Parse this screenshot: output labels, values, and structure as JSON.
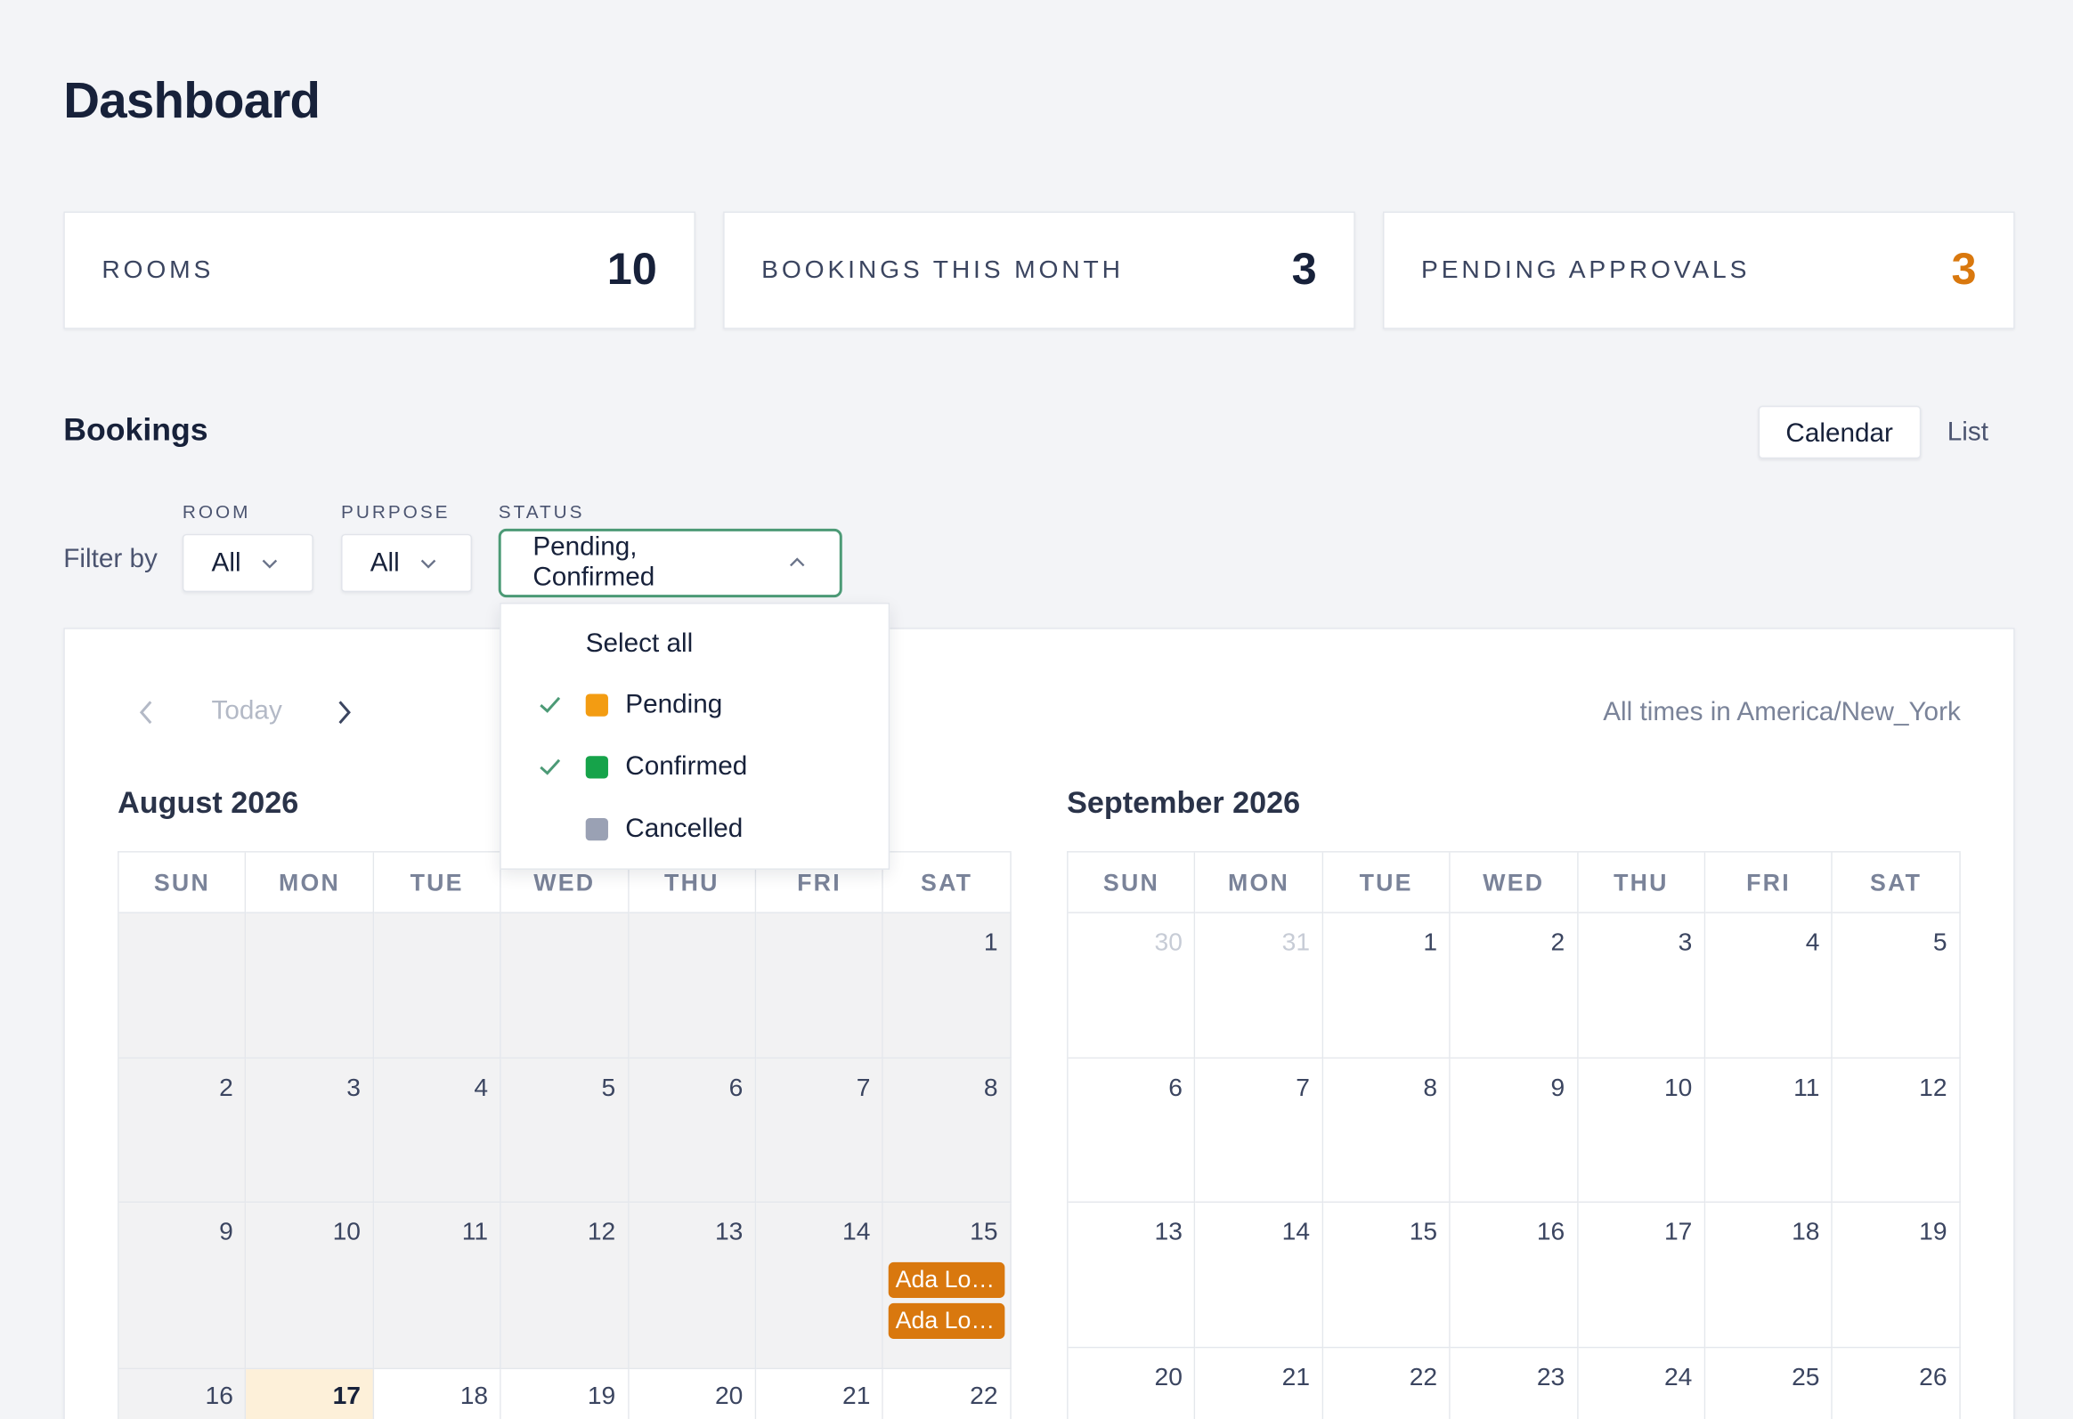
{
  "page": {
    "title": "Dashboard"
  },
  "stats": [
    {
      "label": "ROOMS",
      "value": "10"
    },
    {
      "label": "BOOKINGS THIS MONTH",
      "value": "3"
    },
    {
      "label": "PENDING APPROVALS",
      "value": "3",
      "color": "#d9780e"
    }
  ],
  "bookings": {
    "title": "Bookings",
    "views": {
      "calendar": "Calendar",
      "list": "List",
      "selected": "Calendar"
    }
  },
  "filters": {
    "label": "Filter by",
    "room": {
      "caption": "ROOM",
      "value": "All"
    },
    "purpose": {
      "caption": "PURPOSE",
      "value": "All"
    },
    "status": {
      "caption": "STATUS",
      "value": "Pending, Confirmed",
      "open": true,
      "select_all": "Select all",
      "options": [
        {
          "label": "Pending",
          "checked": true,
          "color": "#f39c12"
        },
        {
          "label": "Confirmed",
          "checked": true,
          "color": "#16a34a"
        },
        {
          "label": "Cancelled",
          "checked": false,
          "color": "#9aa1b4"
        }
      ]
    }
  },
  "calendar": {
    "today_label": "Today",
    "timezone_note": "All times in America/New_York",
    "weekdays": [
      "SUN",
      "MON",
      "TUE",
      "WED",
      "THU",
      "FRI",
      "SAT"
    ],
    "months": [
      {
        "title": "August 2026",
        "weeks": [
          [
            "",
            "",
            "",
            "",
            "",
            "",
            "1"
          ],
          [
            "2",
            "3",
            "4",
            "5",
            "6",
            "7",
            "8"
          ],
          [
            "9",
            "10",
            "11",
            "12",
            "13",
            "14",
            "15"
          ],
          [
            "16",
            "17",
            "18",
            "19",
            "20",
            "21",
            "22"
          ]
        ],
        "today": "17",
        "events": [
          {
            "day": "15",
            "label": "Ada Lo…",
            "status": "Pending"
          },
          {
            "day": "15",
            "label": "Ada Lo…",
            "status": "Pending"
          }
        ]
      },
      {
        "title": "September 2026",
        "weeks": [
          [
            "30",
            "31",
            "1",
            "2",
            "3",
            "4",
            "5"
          ],
          [
            "6",
            "7",
            "8",
            "9",
            "10",
            "11",
            "12"
          ],
          [
            "13",
            "14",
            "15",
            "16",
            "17",
            "18",
            "19"
          ],
          [
            "20",
            "21",
            "22",
            "23",
            "24",
            "25",
            "26"
          ]
        ]
      }
    ]
  }
}
